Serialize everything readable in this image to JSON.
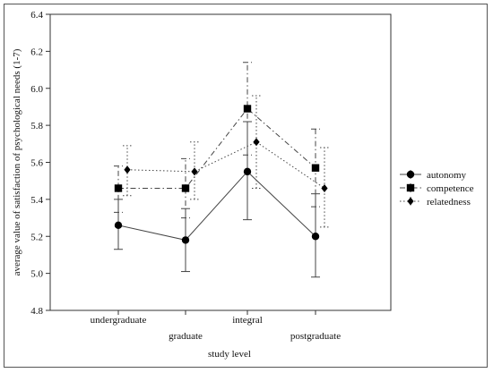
{
  "chart_data": {
    "type": "line",
    "title": "",
    "xlabel": "study level",
    "ylabel": "average value of satisfaction of psychological needs (1-7)",
    "categories": [
      "undergraduate",
      "graduate",
      "integral",
      "postgraduate"
    ],
    "ylim": [
      4.8,
      6.4
    ],
    "yticks": [
      "4.8",
      "5.0",
      "5.2",
      "5.4",
      "5.6",
      "5.8",
      "6.0",
      "6.2",
      "6.4"
    ],
    "yticks_values": [
      4.8,
      5.0,
      5.2,
      5.4,
      5.6,
      5.8,
      6.0,
      6.2,
      6.4
    ],
    "grid": false,
    "legend_position": "right",
    "series": [
      {
        "name": "autonomy",
        "marker": "circle",
        "line_style": "solid",
        "values": [
          5.26,
          5.18,
          5.55,
          5.2
        ],
        "lower": [
          5.13,
          5.01,
          5.29,
          4.98
        ],
        "upper": [
          5.4,
          5.35,
          5.82,
          5.43
        ]
      },
      {
        "name": "competence",
        "marker": "square",
        "line_style": "dash-dot",
        "values": [
          5.46,
          5.46,
          5.89,
          5.57
        ],
        "lower": [
          5.33,
          5.3,
          5.64,
          5.36
        ],
        "upper": [
          5.58,
          5.62,
          6.14,
          5.78
        ]
      },
      {
        "name": "relatedness",
        "marker": "diamond",
        "line_style": "dotted",
        "values": [
          5.56,
          5.55,
          5.71,
          5.46
        ],
        "lower": [
          5.42,
          5.4,
          5.46,
          5.25
        ],
        "upper": [
          5.69,
          5.71,
          5.96,
          5.68
        ]
      }
    ]
  }
}
